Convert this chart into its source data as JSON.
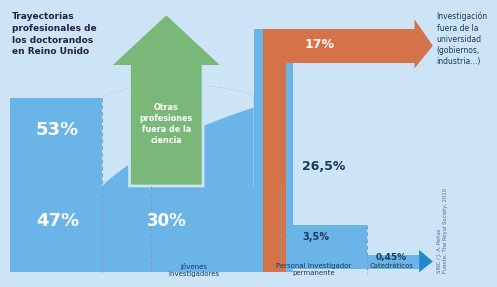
{
  "title": "Trayectorias\nprofesionales de\nlos doctorandos\nen Reino Unido",
  "source_text": "Fuente: The Royal Society, 2010",
  "credit_text": "SINC / J. A. Peñas",
  "labels": {
    "otras": "Otras\nprofesiones\nfuera de la\nciencia",
    "investigacion": "Investigación\nfuera de la\nuniversidad\n(gobiernos,\nindustria...)",
    "jovenes": "Jóvenes\ninvestigadores",
    "personal": "Personal investigador\npermanente",
    "catedraticos": "Catedráticos"
  },
  "percentages": {
    "p53": "53%",
    "p47": "47%",
    "p30": "30%",
    "p265": "26,5%",
    "p17": "17%",
    "p35": "3,5%",
    "p045": "0,45%"
  },
  "bg_color": "#cce4f6",
  "flow_blue": "#6ab4e8",
  "flow_blue_dark": "#4a9fd4",
  "flow_orange": "#d4724a",
  "flow_green": "#7ab87a",
  "arrow_blue": "#2288cc",
  "text_dark": "#1a3a5c",
  "text_white": "#ffffff",
  "line_gray": "#8888aa"
}
